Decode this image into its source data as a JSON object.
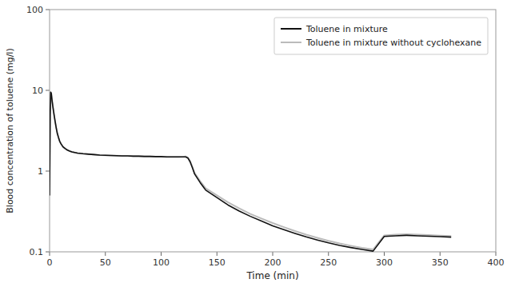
{
  "chart_data": {
    "type": "line",
    "xlabel": "Time (min)",
    "ylabel": "Blood concentration of toluene (mg/l)",
    "log": "y",
    "xlim": [
      0,
      400
    ],
    "ylim": [
      0.1,
      100
    ],
    "xticks": [
      0,
      50,
      100,
      150,
      200,
      250,
      300,
      350,
      400
    ],
    "yticks": [
      0.1,
      1,
      10,
      100
    ],
    "legend": "upper right",
    "x": [
      0,
      0.5,
      1,
      1.5,
      2,
      2.5,
      3,
      4,
      5,
      6,
      7,
      8,
      9,
      10,
      12,
      14,
      16,
      18,
      20,
      25,
      30,
      35,
      40,
      45,
      50,
      55,
      60,
      65,
      70,
      75,
      80,
      85,
      90,
      95,
      100,
      105,
      110,
      115,
      120,
      122,
      124,
      126,
      128,
      130,
      135,
      140,
      150,
      160,
      170,
      180,
      190,
      200,
      210,
      220,
      230,
      240,
      250,
      260,
      270,
      280,
      290,
      300,
      310,
      320,
      330,
      340,
      350,
      360
    ],
    "series": [
      {
        "name": "Toluene in mixture",
        "color": "#111111",
        "values": [
          0.5,
          5.0,
          9.5,
          9.2,
          8.0,
          7.0,
          6.2,
          5.0,
          4.1,
          3.4,
          2.9,
          2.6,
          2.35,
          2.2,
          2.0,
          1.9,
          1.82,
          1.77,
          1.73,
          1.67,
          1.64,
          1.62,
          1.6,
          1.58,
          1.57,
          1.56,
          1.55,
          1.54,
          1.54,
          1.53,
          1.53,
          1.52,
          1.52,
          1.51,
          1.51,
          1.5,
          1.5,
          1.5,
          1.5,
          1.5,
          1.45,
          1.3,
          1.1,
          0.92,
          0.72,
          0.58,
          0.47,
          0.38,
          0.32,
          0.275,
          0.24,
          0.21,
          0.188,
          0.169,
          0.153,
          0.14,
          0.129,
          0.12,
          0.113,
          0.107,
          0.102,
          0.155,
          0.158,
          0.16,
          0.158,
          0.156,
          0.154,
          0.152
        ]
      },
      {
        "name": "Toluene in mixture without cyclohexane",
        "color": "#bbbbbb",
        "values": [
          0.5,
          5.0,
          9.5,
          9.2,
          8.0,
          7.0,
          6.2,
          5.0,
          4.1,
          3.4,
          2.9,
          2.6,
          2.35,
          2.2,
          2.0,
          1.9,
          1.82,
          1.77,
          1.73,
          1.67,
          1.64,
          1.62,
          1.6,
          1.58,
          1.57,
          1.56,
          1.55,
          1.54,
          1.54,
          1.53,
          1.53,
          1.52,
          1.52,
          1.51,
          1.51,
          1.5,
          1.5,
          1.5,
          1.51,
          1.52,
          1.47,
          1.33,
          1.13,
          0.95,
          0.75,
          0.61,
          0.5,
          0.41,
          0.345,
          0.295,
          0.258,
          0.227,
          0.202,
          0.181,
          0.163,
          0.149,
          0.137,
          0.127,
          0.119,
          0.112,
          0.107,
          0.16,
          0.163,
          0.165,
          0.163,
          0.161,
          0.159,
          0.157
        ]
      }
    ]
  }
}
